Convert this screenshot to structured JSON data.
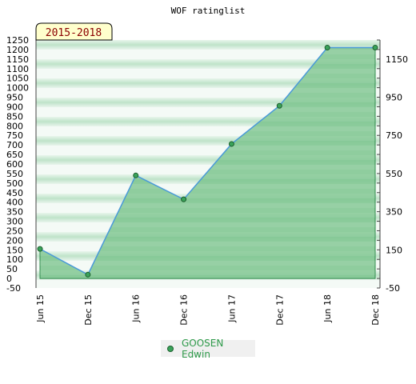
{
  "chart_data": {
    "type": "area",
    "title": "WOF ratinglist",
    "badge": "2015-2018",
    "categories": [
      "Jun 15",
      "Dec 15",
      "Jun 16",
      "Dec 16",
      "Jun 17",
      "Dec 17",
      "Jun 18",
      "Dec 18"
    ],
    "series": [
      {
        "name": "GOOSEN Edwin",
        "values": [
          155,
          20,
          540,
          415,
          705,
          905,
          1210,
          1210
        ]
      }
    ],
    "ylim": [
      -50,
      1250
    ],
    "yticks_left": [
      -50,
      0,
      50,
      100,
      150,
      200,
      250,
      300,
      350,
      400,
      450,
      500,
      550,
      600,
      650,
      700,
      750,
      800,
      850,
      900,
      950,
      1000,
      1050,
      1100,
      1150,
      1200,
      1250
    ],
    "yticks_right": [
      -50,
      150,
      350,
      550,
      750,
      950,
      1150
    ],
    "grid": true,
    "legend_position": "bottom"
  },
  "colors": {
    "area_fill": "#7cc48e",
    "line": "#4a9ad9",
    "marker": "#3aa35a",
    "badge_bg": "#ffffcc",
    "legend_text": "#2e9a4a"
  }
}
